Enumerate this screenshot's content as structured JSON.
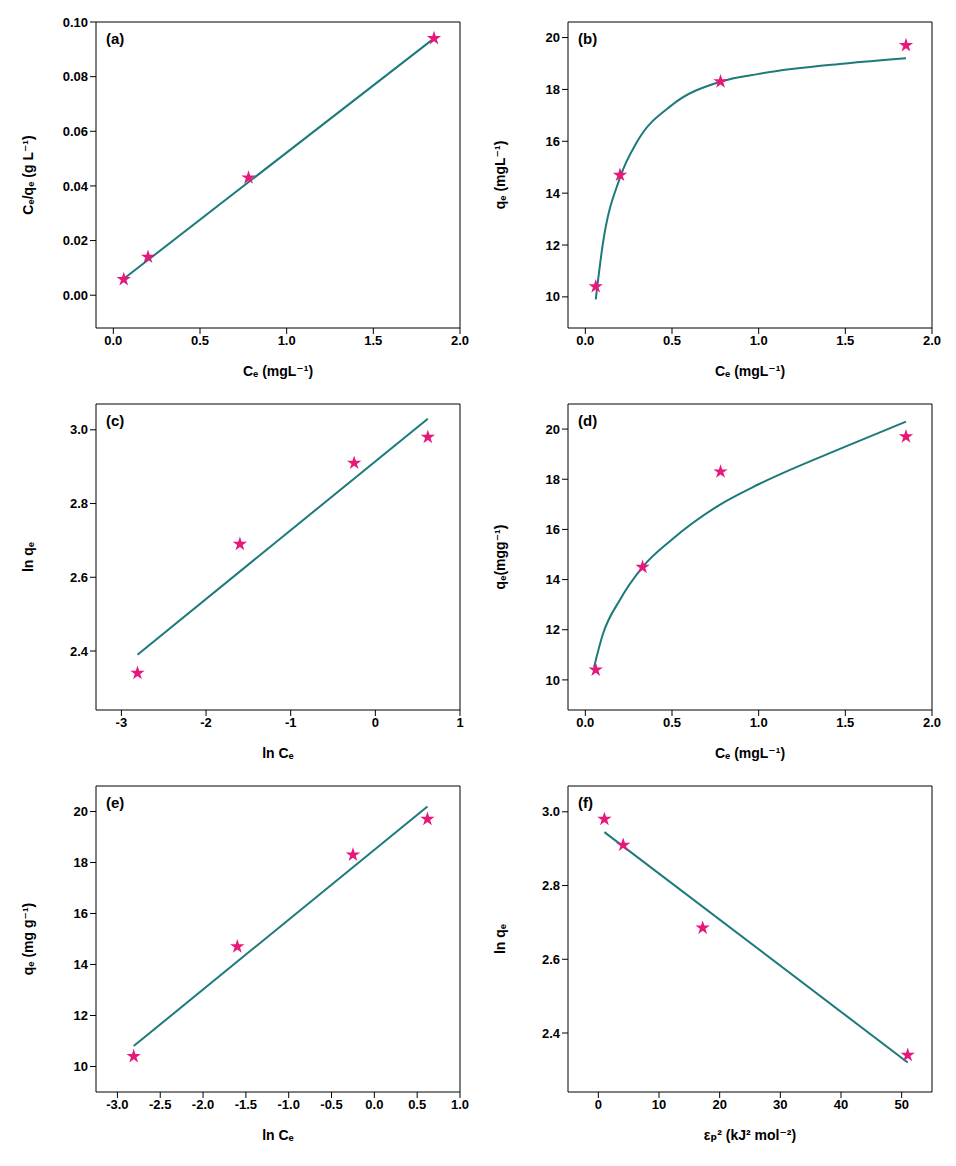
{
  "chart_data": [
    {
      "type": "scatter",
      "title": "(a)",
      "x_label": "Cₑ (mgL⁻¹)",
      "y_label": "Cₑ/qₑ (g L⁻¹)",
      "xlim": [
        -0.1,
        2.0
      ],
      "xticks": [
        {
          "value": 0,
          "label": "0.0"
        },
        0.5,
        {
          "value": 1,
          "label": "1.0"
        },
        1.5,
        {
          "value": 2,
          "label": "2.0"
        }
      ],
      "ylim": [
        -0.012,
        0.1
      ],
      "yticks": [
        {
          "value": 0,
          "label": "0.00"
        },
        0.02,
        0.04,
        0.06,
        0.08,
        {
          "value": 0.1,
          "label": "0.10"
        }
      ],
      "grid": false,
      "series": [
        {
          "type": "line",
          "color": "#1c7a7a",
          "line_style": "solid",
          "x": [
            0.06,
            1.85
          ],
          "values": [
            0.006,
            0.094
          ]
        },
        {
          "type": "scatter",
          "color": "#e6197a",
          "marker": "star",
          "x": [
            0.06,
            0.2,
            0.78,
            1.85
          ],
          "values": [
            0.0058,
            0.014,
            0.043,
            0.094
          ]
        }
      ]
    },
    {
      "type": "scatter",
      "title": "(b)",
      "x_label": "Cₑ (mgL⁻¹)",
      "y_label": "qₑ (mgL⁻¹)",
      "xlim": [
        -0.1,
        2.0
      ],
      "xticks": [
        {
          "value": 0,
          "label": "0.0"
        },
        0.5,
        {
          "value": 1,
          "label": "1.0"
        },
        1.5,
        {
          "value": 2,
          "label": "2.0"
        }
      ],
      "ylim": [
        8.8,
        20.6
      ],
      "yticks": [
        10,
        12,
        14,
        16,
        18,
        20
      ],
      "grid": false,
      "series": [
        {
          "type": "line",
          "color": "#1c7a7a",
          "line_style": "solid",
          "x": [
            0.06,
            0.1,
            0.2,
            0.3,
            0.5,
            0.78,
            1.0,
            1.5,
            1.85
          ],
          "values": [
            9.9,
            12.0,
            14.6,
            16.0,
            17.4,
            18.3,
            18.6,
            19.0,
            19.2
          ]
        },
        {
          "type": "scatter",
          "color": "#e6197a",
          "marker": "star",
          "x": [
            0.06,
            0.2,
            0.78,
            1.85
          ],
          "values": [
            10.4,
            14.7,
            18.3,
            19.7
          ]
        }
      ]
    },
    {
      "type": "scatter",
      "title": "(c)",
      "x_label": "ln Cₑ",
      "y_label": "ln qₑ",
      "xlim": [
        -3.3,
        1
      ],
      "xticks": [
        -3,
        -2,
        -1,
        0,
        1
      ],
      "ylim": [
        2.24,
        3.07
      ],
      "yticks": [
        2.4,
        2.6,
        2.8,
        {
          "value": 3,
          "label": "3.0"
        }
      ],
      "grid": false,
      "series": [
        {
          "type": "line",
          "color": "#1c7a7a",
          "line_style": "solid",
          "x": [
            -2.81,
            0.62
          ],
          "values": [
            2.39,
            3.03
          ]
        },
        {
          "type": "scatter",
          "color": "#e6197a",
          "marker": "star",
          "x": [
            -2.81,
            -1.6,
            -0.25,
            0.62
          ],
          "values": [
            2.34,
            2.69,
            2.91,
            2.98
          ]
        }
      ]
    },
    {
      "type": "scatter",
      "title": "(d)",
      "x_label": "Cₑ (mgL⁻¹)",
      "y_label": "qₑ(mgg⁻¹)",
      "xlim": [
        -0.1,
        2.0
      ],
      "xticks": [
        {
          "value": 0,
          "label": "0.0"
        },
        0.5,
        {
          "value": 1,
          "label": "1.0"
        },
        1.5,
        {
          "value": 2,
          "label": "2.0"
        }
      ],
      "ylim": [
        8.8,
        21
      ],
      "yticks": [
        10,
        12,
        14,
        16,
        18,
        20
      ],
      "grid": false,
      "series": [
        {
          "type": "line",
          "color": "#1c7a7a",
          "line_style": "solid",
          "x": [
            0.05,
            0.1,
            0.2,
            0.33,
            0.5,
            0.78,
            1.0,
            1.5,
            1.85
          ],
          "values": [
            10.5,
            11.8,
            13.2,
            14.5,
            15.6,
            17.0,
            17.8,
            19.3,
            20.3
          ]
        },
        {
          "type": "scatter",
          "color": "#e6197a",
          "marker": "star",
          "x": [
            0.06,
            0.33,
            0.78,
            1.85
          ],
          "values": [
            10.4,
            14.5,
            18.3,
            19.7
          ]
        }
      ]
    },
    {
      "type": "scatter",
      "title": "(e)",
      "x_label": "ln Cₑ",
      "y_label": "qₑ (mg g⁻¹)",
      "xlim": [
        -3.25,
        1.0
      ],
      "xticks": [
        {
          "value": -3,
          "label": "-3.0"
        },
        -2.5,
        {
          "value": -2,
          "label": "-2.0"
        },
        -1.5,
        {
          "value": -1,
          "label": "-1.0"
        },
        -0.5,
        {
          "value": 0,
          "label": "0.0"
        },
        0.5,
        {
          "value": 1,
          "label": "1.0"
        }
      ],
      "ylim": [
        9,
        21
      ],
      "yticks": [
        10,
        12,
        14,
        16,
        18,
        20
      ],
      "grid": false,
      "series": [
        {
          "type": "line",
          "color": "#1c7a7a",
          "line_style": "solid",
          "x": [
            -2.81,
            0.62
          ],
          "values": [
            10.8,
            20.2
          ]
        },
        {
          "type": "scatter",
          "color": "#e6197a",
          "marker": "star",
          "x": [
            -2.81,
            -1.6,
            -0.25,
            0.62
          ],
          "values": [
            10.4,
            14.7,
            18.3,
            19.7
          ]
        }
      ]
    },
    {
      "type": "scatter",
      "title": "(f)",
      "x_label": "εₚ² (kJ² mol⁻²)",
      "y_label": "ln qₑ",
      "xlim": [
        -5,
        55
      ],
      "xticks": [
        0,
        10,
        20,
        30,
        40,
        50
      ],
      "ylim": [
        2.24,
        3.07
      ],
      "yticks": [
        2.4,
        2.6,
        2.8,
        {
          "value": 3,
          "label": "3.0"
        }
      ],
      "grid": false,
      "series": [
        {
          "type": "line",
          "color": "#1c7a7a",
          "line_style": "solid",
          "x": [
            1,
            51
          ],
          "values": [
            2.945,
            2.32
          ]
        },
        {
          "type": "scatter",
          "color": "#e6197a",
          "marker": "star",
          "x": [
            1,
            4.1,
            17.2,
            51
          ],
          "values": [
            2.98,
            2.91,
            2.685,
            2.34
          ]
        }
      ]
    }
  ]
}
